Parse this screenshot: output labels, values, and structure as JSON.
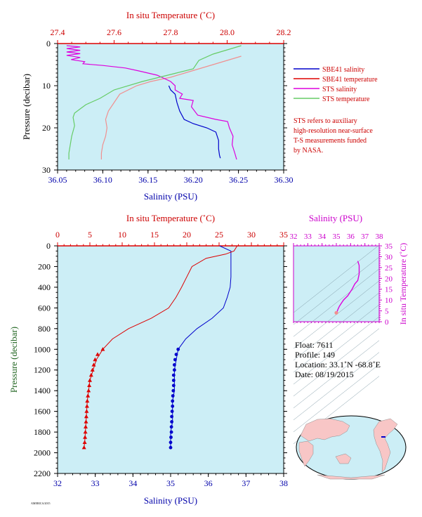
{
  "colors": {
    "plot_bg": "#cceef6",
    "salinity": "#0000cc",
    "temperature": "#dd0000",
    "sts_salinity": "#dd00dd",
    "sts_temperature": "#66cc66",
    "sbe_temp_line": "#f09090",
    "axis_red": "#cc0000",
    "axis_blue": "#0000aa",
    "axis_green": "#226622",
    "axis_magenta": "#cc00cc"
  },
  "float_info": {
    "float": "Float:  7611",
    "profile": "Profile:  149",
    "location": "Location:  33.1˚N  -68.8˚E",
    "date": "Date:  08/19/2015"
  },
  "note": [
    "STS refers to auxiliary",
    "high-resolution near-surface",
    "T-S measurements funded",
    "by NASA."
  ],
  "footer_tag": "AMERICA/2015",
  "map": {
    "marker": "33.1N -68.8E"
  },
  "chart_data": [
    {
      "id": "near_surface",
      "type": "line",
      "title": "In situ Temperature (˚C)",
      "xlabel": "Salinity (PSU)",
      "ylabel": "Pressure (decibar)",
      "x_ticks": [
        "36.05",
        "36.10",
        "36.15",
        "36.20",
        "36.25",
        "36.30"
      ],
      "xlim": [
        36.05,
        36.3
      ],
      "top_ticks": [
        "27.4",
        "27.6",
        "27.8",
        "28.0",
        "28.2"
      ],
      "top_lim": [
        27.4,
        28.2
      ],
      "y_ticks": [
        "0",
        "10",
        "20",
        "30"
      ],
      "ylim": [
        0,
        30
      ],
      "legend": [
        "SBE41 salinity",
        "SBE41 temperature",
        "STS salinity",
        "STS temperature"
      ],
      "series": [
        {
          "name": "SBE41 salinity",
          "axis": "salinity",
          "points": [
            [
              36.173,
              10
            ],
            [
              36.175,
              11
            ],
            [
              36.18,
              12
            ],
            [
              36.182,
              14
            ],
            [
              36.185,
              16
            ],
            [
              36.19,
              18
            ],
            [
              36.2,
              19
            ],
            [
              36.215,
              20
            ],
            [
              36.225,
              21
            ],
            [
              36.228,
              23
            ],
            [
              36.228,
              25
            ],
            [
              36.229,
              26.5
            ],
            [
              36.23,
              27.2
            ]
          ]
        },
        {
          "name": "SBE41 temperature",
          "axis": "temperature",
          "points": [
            [
              28.05,
              3
            ],
            [
              28.0,
              4
            ],
            [
              27.95,
              5
            ],
            [
              27.9,
              6
            ],
            [
              27.85,
              7
            ],
            [
              27.8,
              8
            ],
            [
              27.73,
              9
            ],
            [
              27.68,
              10
            ],
            [
              27.62,
              12
            ],
            [
              27.6,
              14
            ],
            [
              27.58,
              16
            ],
            [
              27.57,
              18
            ],
            [
              27.575,
              20
            ],
            [
              27.57,
              22
            ],
            [
              27.56,
              24
            ],
            [
              27.555,
              26
            ],
            [
              27.555,
              27.5
            ]
          ]
        },
        {
          "name": "STS salinity",
          "axis": "salinity",
          "points": [
            [
              36.06,
              0.5
            ],
            [
              36.075,
              0.8
            ],
            [
              36.06,
              1.2
            ],
            [
              36.075,
              1.6
            ],
            [
              36.06,
              2
            ],
            [
              36.075,
              2.4
            ],
            [
              36.06,
              2.8
            ],
            [
              36.075,
              3.3
            ],
            [
              36.065,
              3.8
            ],
            [
              36.08,
              4.3
            ],
            [
              36.078,
              4.8
            ],
            [
              36.1,
              5.2
            ],
            [
              36.125,
              5.8
            ],
            [
              36.14,
              6.5
            ],
            [
              36.16,
              7.5
            ],
            [
              36.175,
              9
            ],
            [
              36.18,
              10
            ],
            [
              36.18,
              11
            ],
            [
              36.188,
              12
            ],
            [
              36.185,
              13
            ],
            [
              36.2,
              13.5
            ],
            [
              36.198,
              15
            ],
            [
              36.205,
              17
            ],
            [
              36.225,
              18
            ],
            [
              36.238,
              18.5
            ],
            [
              36.24,
              20
            ],
            [
              36.244,
              22
            ],
            [
              36.243,
              24
            ],
            [
              36.246,
              26
            ],
            [
              36.248,
              27.5
            ]
          ]
        },
        {
          "name": "STS temperature",
          "axis": "temperature",
          "points": [
            [
              28.05,
              0.5
            ],
            [
              28.0,
              1.5
            ],
            [
              27.95,
              2.5
            ],
            [
              27.9,
              4
            ],
            [
              27.88,
              6
            ],
            [
              27.82,
              7
            ],
            [
              27.7,
              9
            ],
            [
              27.6,
              11
            ],
            [
              27.55,
              13
            ],
            [
              27.5,
              14.5
            ],
            [
              27.48,
              15.5
            ],
            [
              27.46,
              16.5
            ],
            [
              27.455,
              17.5
            ],
            [
              27.46,
              19.5
            ],
            [
              27.45,
              22
            ],
            [
              27.445,
              24
            ],
            [
              27.44,
              26
            ],
            [
              27.44,
              27.5
            ]
          ]
        }
      ]
    },
    {
      "id": "full_profile",
      "type": "line",
      "title": "In situ Temperature (˚C)",
      "xlabel": "Salinity (PSU)",
      "ylabel": "Pressure (decibar)",
      "x_ticks": [
        "32",
        "33",
        "34",
        "35",
        "36",
        "37",
        "38"
      ],
      "xlim": [
        32,
        38
      ],
      "top_ticks": [
        "0",
        "5",
        "10",
        "15",
        "20",
        "25",
        "30",
        "35"
      ],
      "top_lim": [
        0,
        35
      ],
      "y_ticks": [
        "0",
        "200",
        "400",
        "600",
        "800",
        "1000",
        "1200",
        "1400",
        "1600",
        "1800",
        "2000",
        "2200"
      ],
      "ylim": [
        0,
        2200
      ],
      "series": [
        {
          "name": "Salinity",
          "axis": "salinity",
          "points": [
            [
              36.3,
              0
            ],
            [
              36.6,
              50
            ],
            [
              36.6,
              100
            ],
            [
              36.6,
              200
            ],
            [
              36.6,
              300
            ],
            [
              36.58,
              400
            ],
            [
              36.5,
              500
            ],
            [
              36.4,
              600
            ],
            [
              36.1,
              700
            ],
            [
              35.7,
              800
            ],
            [
              35.4,
              900
            ],
            [
              35.2,
              1000
            ],
            [
              35.15,
              1100
            ],
            [
              35.1,
              1200
            ],
            [
              35.1,
              1300
            ],
            [
              35.1,
              1400
            ],
            [
              35.05,
              1500
            ],
            [
              35.05,
              1600
            ],
            [
              35.05,
              1700
            ],
            [
              35.0,
              1800
            ],
            [
              35.0,
              1900
            ],
            [
              35.0,
              1950
            ]
          ]
        },
        {
          "name": "Salinity samples",
          "axis": "salinity",
          "points": [
            [
              35.2,
              1000
            ],
            [
              35.15,
              1050
            ],
            [
              35.12,
              1100
            ],
            [
              35.1,
              1150
            ],
            [
              35.1,
              1200
            ],
            [
              35.08,
              1250
            ],
            [
              35.08,
              1300
            ],
            [
              35.08,
              1350
            ],
            [
              35.07,
              1400
            ],
            [
              35.06,
              1450
            ],
            [
              35.05,
              1500
            ],
            [
              35.05,
              1550
            ],
            [
              35.04,
              1600
            ],
            [
              35.03,
              1650
            ],
            [
              35.03,
              1700
            ],
            [
              35.02,
              1750
            ],
            [
              35.02,
              1800
            ],
            [
              35.01,
              1850
            ],
            [
              35.0,
              1900
            ],
            [
              35.0,
              1950
            ]
          ]
        },
        {
          "name": "Temperature",
          "axis": "temperature",
          "points": [
            [
              27.8,
              0
            ],
            [
              27.3,
              50
            ],
            [
              26,
              80
            ],
            [
              23,
              120
            ],
            [
              20.8,
              200
            ],
            [
              20,
              300
            ],
            [
              19.2,
              400
            ],
            [
              18.3,
              500
            ],
            [
              17.2,
              600
            ],
            [
              14.5,
              700
            ],
            [
              11,
              800
            ],
            [
              8.5,
              900
            ],
            [
              7.0,
              1000
            ],
            [
              6.0,
              1100
            ],
            [
              5.5,
              1200
            ],
            [
              5.0,
              1300
            ],
            [
              4.8,
              1400
            ],
            [
              4.6,
              1500
            ],
            [
              4.5,
              1600
            ],
            [
              4.4,
              1700
            ],
            [
              4.3,
              1800
            ],
            [
              4.2,
              1900
            ],
            [
              4.1,
              1950
            ]
          ]
        },
        {
          "name": "Temperature samples",
          "axis": "temperature",
          "points": [
            [
              7.0,
              1000
            ],
            [
              6.2,
              1050
            ],
            [
              5.8,
              1100
            ],
            [
              5.6,
              1150
            ],
            [
              5.4,
              1200
            ],
            [
              5.2,
              1250
            ],
            [
              5.0,
              1300
            ],
            [
              4.9,
              1350
            ],
            [
              4.8,
              1400
            ],
            [
              4.7,
              1450
            ],
            [
              4.6,
              1500
            ],
            [
              4.55,
              1550
            ],
            [
              4.5,
              1600
            ],
            [
              4.45,
              1650
            ],
            [
              4.4,
              1700
            ],
            [
              4.35,
              1750
            ],
            [
              4.3,
              1800
            ],
            [
              4.25,
              1850
            ],
            [
              4.2,
              1900
            ],
            [
              4.1,
              1950
            ]
          ]
        }
      ]
    },
    {
      "id": "ts_diagram",
      "type": "scatter",
      "title": "Salinity (PSU)",
      "ylabel": "In situ Temperature (˚C)",
      "x_ticks": [
        "32",
        "33",
        "34",
        "35",
        "36",
        "37",
        "38"
      ],
      "xlim": [
        32,
        38
      ],
      "y_ticks": [
        "0",
        "5",
        "10",
        "15",
        "20",
        "25",
        "30",
        "35"
      ],
      "ylim": [
        0,
        35
      ],
      "series": [
        {
          "name": "T-S curve",
          "axis": "ts",
          "points": [
            [
              36.5,
              28
            ],
            [
              36.6,
              26
            ],
            [
              36.6,
              22
            ],
            [
              36.5,
              19
            ],
            [
              36.3,
              17.5
            ],
            [
              36.1,
              15
            ],
            [
              35.8,
              12
            ],
            [
              35.5,
              10
            ],
            [
              35.3,
              8
            ],
            [
              35.2,
              7
            ],
            [
              35.1,
              5.5
            ],
            [
              35.05,
              4.5
            ],
            [
              35.0,
              4.1
            ]
          ]
        }
      ]
    }
  ]
}
